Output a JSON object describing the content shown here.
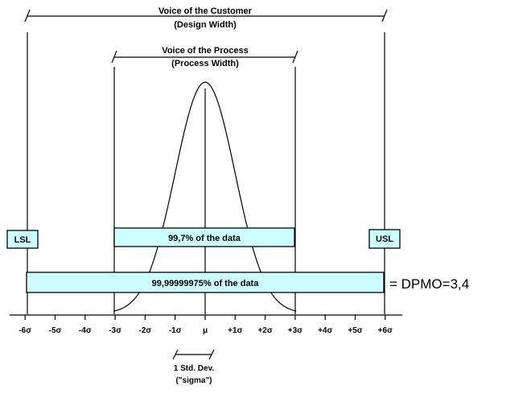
{
  "voc": {
    "title": "Voice of the Customer",
    "subtitle": "(Design Width)"
  },
  "vop": {
    "title": "Voice of the Process",
    "subtitle": "(Process Width)"
  },
  "lsl": "LSL",
  "usl": "USL",
  "band_3sigma": "99,7% of the data",
  "band_6sigma": "99,99999975% of the data",
  "dpmo": "= DPMO=3,4",
  "ticks": [
    "-6σ",
    "-5σ",
    "-4σ",
    "-3σ",
    "-2σ",
    "-1σ",
    "μ",
    "+1σ",
    "+2σ",
    "+3σ",
    "+4σ",
    "+5σ",
    "+6σ"
  ],
  "std_dev": {
    "line1": "1 Std. Dev.",
    "line2": "(\"sigma\")"
  }
}
